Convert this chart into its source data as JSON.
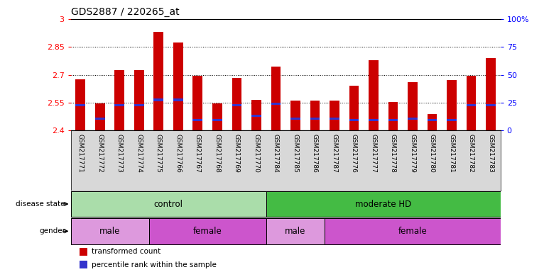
{
  "title": "GDS2887 / 220265_at",
  "samples": [
    "GSM217771",
    "GSM217772",
    "GSM217773",
    "GSM217774",
    "GSM217775",
    "GSM217766",
    "GSM217767",
    "GSM217768",
    "GSM217769",
    "GSM217770",
    "GSM217784",
    "GSM217785",
    "GSM217786",
    "GSM217787",
    "GSM217776",
    "GSM217777",
    "GSM217778",
    "GSM217779",
    "GSM217780",
    "GSM217781",
    "GSM217782",
    "GSM217783"
  ],
  "bar_values": [
    2.675,
    2.545,
    2.725,
    2.725,
    2.93,
    2.875,
    2.695,
    2.545,
    2.685,
    2.565,
    2.745,
    2.56,
    2.56,
    2.56,
    2.64,
    2.78,
    2.555,
    2.66,
    2.49,
    2.67,
    2.695,
    2.79
  ],
  "blue_marks": [
    2.535,
    2.465,
    2.535,
    2.535,
    2.565,
    2.565,
    2.455,
    2.455,
    2.535,
    2.48,
    2.545,
    2.465,
    2.465,
    2.465,
    2.455,
    2.455,
    2.455,
    2.465,
    2.455,
    2.455,
    2.535,
    2.535
  ],
  "ymin": 2.4,
  "ymax": 3.0,
  "yticks": [
    2.4,
    2.55,
    2.7,
    2.85,
    3.0
  ],
  "ytick_labels": [
    "2.4",
    "2.55",
    "2.7",
    "2.85",
    "3"
  ],
  "right_yticks": [
    0,
    25,
    50,
    75,
    100
  ],
  "right_ytick_labels": [
    "0",
    "25",
    "50",
    "75",
    "100%"
  ],
  "grid_lines": [
    2.55,
    2.7,
    2.85
  ],
  "bar_color": "#cc0000",
  "blue_color": "#3333cc",
  "background_color": "#ffffff",
  "disease_groups": [
    {
      "label": "control",
      "start": 0,
      "end": 10,
      "color": "#aaddaa"
    },
    {
      "label": "moderate HD",
      "start": 10,
      "end": 22,
      "color": "#44bb44"
    }
  ],
  "gender_groups": [
    {
      "label": "male",
      "start": 0,
      "end": 4,
      "color": "#dd99dd"
    },
    {
      "label": "female",
      "start": 4,
      "end": 10,
      "color": "#cc55cc"
    },
    {
      "label": "male",
      "start": 10,
      "end": 13,
      "color": "#dd99dd"
    },
    {
      "label": "female",
      "start": 13,
      "end": 22,
      "color": "#cc55cc"
    }
  ],
  "left_label_disease": "disease state",
  "left_label_gender": "gender",
  "legend_items": [
    {
      "label": "transformed count",
      "color": "#cc0000"
    },
    {
      "label": "percentile rank within the sample",
      "color": "#3333cc"
    }
  ],
  "sample_label_bg": "#d8d8d8",
  "bar_width": 0.5
}
